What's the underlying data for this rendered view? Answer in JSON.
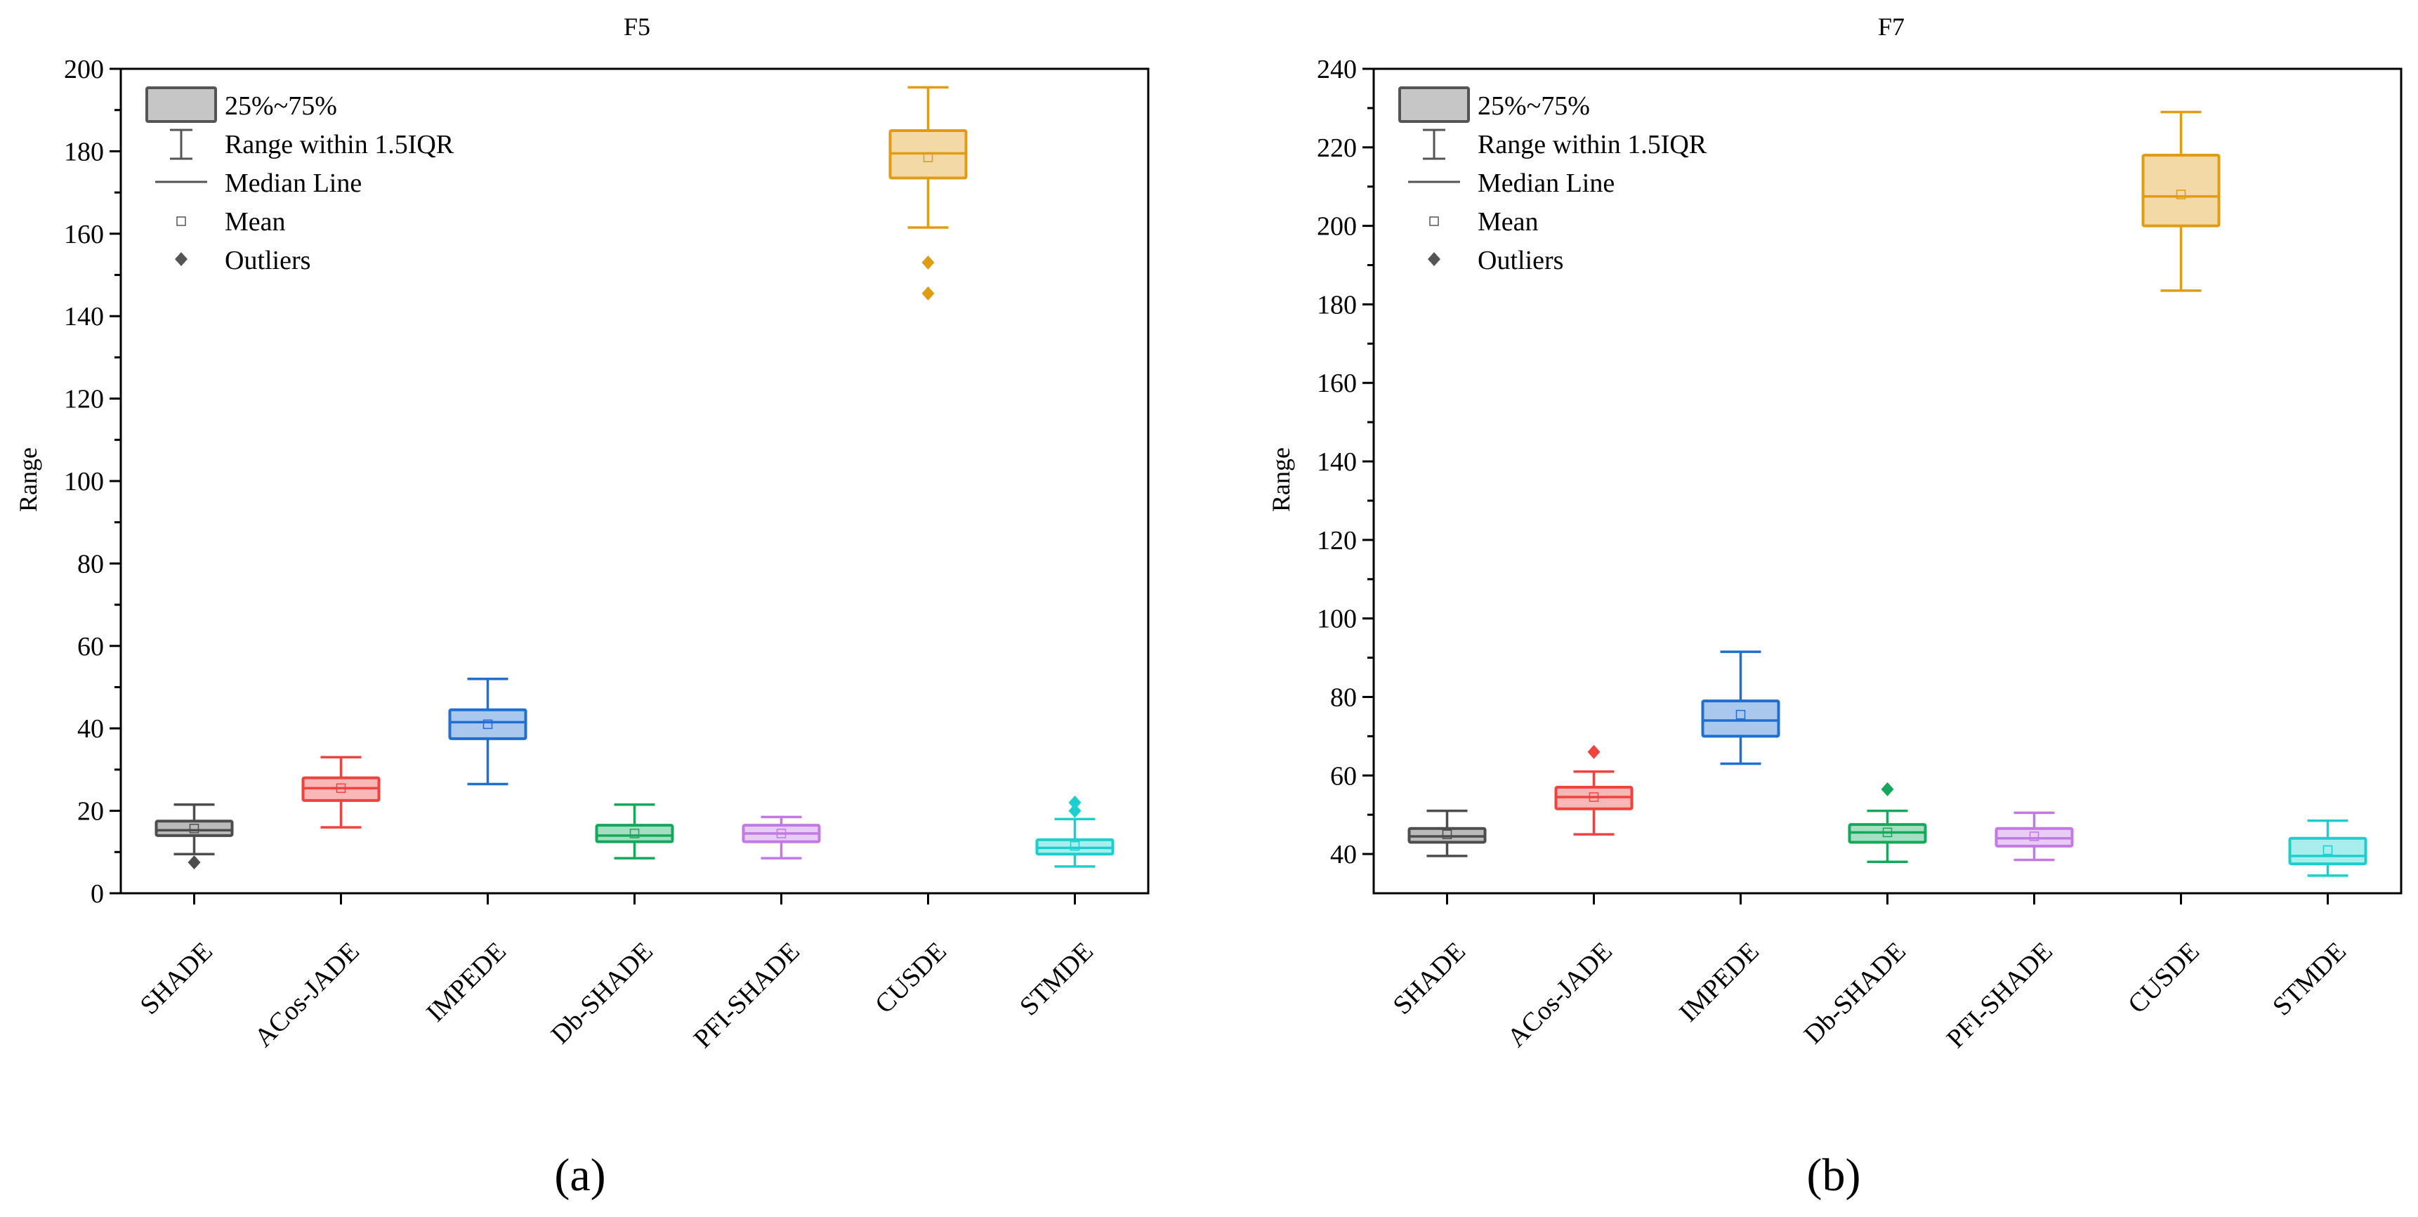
{
  "legend_items": {
    "box": "25%~75%",
    "whisker": "Range within 1.5IQR",
    "median": "Median Line",
    "mean": "Mean",
    "outliers": "Outliers"
  },
  "legend_color": "#555555",
  "chart_data": [
    {
      "type": "box",
      "panel_label": "(a)",
      "title": "F5",
      "xlabel": "",
      "ylabel": "Range",
      "ylim": [
        0,
        200
      ],
      "yticks": [
        0,
        20,
        40,
        60,
        80,
        100,
        120,
        140,
        160,
        180,
        200
      ],
      "legend_position": "top-left",
      "series": [
        {
          "name": "SHADE",
          "color": "#4d4d4d",
          "min": 9.5,
          "q1": 14.0,
          "median": 15.3,
          "q3": 17.5,
          "max": 21.5,
          "mean": 15.7,
          "outliers": [
            7.5
          ]
        },
        {
          "name": "ACos-JADE",
          "color": "#f0423f",
          "min": 16.0,
          "q1": 22.5,
          "median": 25.5,
          "q3": 28.0,
          "max": 33.0,
          "mean": 25.5,
          "outliers": []
        },
        {
          "name": "IMPEDE",
          "color": "#1f6fd1",
          "min": 26.5,
          "q1": 37.5,
          "median": 41.5,
          "q3": 44.5,
          "max": 52.0,
          "mean": 41.0,
          "outliers": []
        },
        {
          "name": "Db-SHADE",
          "color": "#15a85c",
          "min": 8.5,
          "q1": 12.5,
          "median": 14.0,
          "q3": 16.5,
          "max": 21.5,
          "mean": 14.5,
          "outliers": []
        },
        {
          "name": "PFI-SHADE",
          "color": "#c279e6",
          "min": 8.5,
          "q1": 12.5,
          "median": 14.5,
          "q3": 16.5,
          "max": 18.5,
          "mean": 14.5,
          "outliers": []
        },
        {
          "name": "CUSDE",
          "color": "#e09c12",
          "min": 161.5,
          "q1": 173.5,
          "median": 179.5,
          "q3": 185.0,
          "max": 195.5,
          "mean": 178.5,
          "outliers": [
            153.0,
            145.5
          ]
        },
        {
          "name": "STMDE",
          "color": "#1ccfcf",
          "min": 6.5,
          "q1": 9.5,
          "median": 11.0,
          "q3": 13.0,
          "max": 18.0,
          "mean": 11.5,
          "outliers": [
            20.0,
            22.0
          ]
        }
      ]
    },
    {
      "type": "box",
      "panel_label": "(b)",
      "title": "F7",
      "xlabel": "",
      "ylabel": "Range",
      "ylim": [
        30,
        240
      ],
      "yticks": [
        40,
        60,
        80,
        100,
        120,
        140,
        160,
        180,
        200,
        220,
        240
      ],
      "legend_position": "top-left",
      "series": [
        {
          "name": "SHADE",
          "color": "#4d4d4d",
          "min": 39.5,
          "q1": 43.0,
          "median": 44.5,
          "q3": 46.5,
          "max": 51.0,
          "mean": 45.0,
          "outliers": []
        },
        {
          "name": "ACos-JADE",
          "color": "#f0423f",
          "min": 45.0,
          "q1": 51.5,
          "median": 54.5,
          "q3": 57.0,
          "max": 61.0,
          "mean": 54.5,
          "outliers": [
            66.0
          ]
        },
        {
          "name": "IMPEDE",
          "color": "#1f6fd1",
          "min": 63.0,
          "q1": 70.0,
          "median": 74.0,
          "q3": 79.0,
          "max": 91.5,
          "mean": 75.5,
          "outliers": []
        },
        {
          "name": "Db-SHADE",
          "color": "#15a85c",
          "min": 38.0,
          "q1": 43.0,
          "median": 45.5,
          "q3": 47.5,
          "max": 51.0,
          "mean": 45.5,
          "outliers": [
            56.5
          ]
        },
        {
          "name": "PFI-SHADE",
          "color": "#c279e6",
          "min": 38.5,
          "q1": 42.0,
          "median": 44.0,
          "q3": 46.5,
          "max": 50.5,
          "mean": 44.5,
          "outliers": []
        },
        {
          "name": "CUSDE",
          "color": "#e09c12",
          "min": 183.5,
          "q1": 200.0,
          "median": 207.5,
          "q3": 218.0,
          "max": 229.0,
          "mean": 208.0,
          "outliers": []
        },
        {
          "name": "STMDE",
          "color": "#1ccfcf",
          "min": 34.5,
          "q1": 37.5,
          "median": 39.5,
          "q3": 44.0,
          "max": 48.5,
          "mean": 41.0,
          "outliers": []
        }
      ]
    }
  ]
}
